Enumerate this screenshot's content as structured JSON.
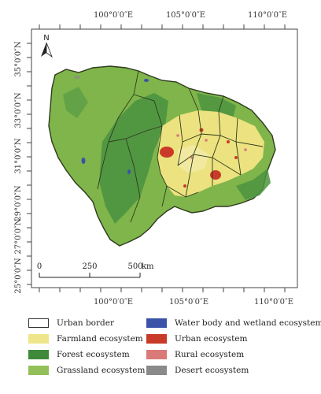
{
  "map": {
    "north_label": "N",
    "longitude_labels": [
      "100°0′0″E",
      "105°0′0″E",
      "110°0′0″E"
    ],
    "latitude_labels": [
      "35°0′0″N",
      "33°0′0″N",
      "31°0′0″N",
      "29°0′0″N",
      "27°0′0″N",
      "25°0′0″N"
    ],
    "scale_bar": {
      "ticks": [
        "0",
        "250",
        "500"
      ],
      "unit": "km"
    }
  },
  "legend": {
    "items": [
      {
        "label": "Urban border",
        "color": "#ffffff",
        "icon": "outline-box"
      },
      {
        "label": "Water body and wetland ecosystem",
        "color": "#3a52a8",
        "icon": "color-swatch"
      },
      {
        "label": "Farmland ecosystem",
        "color": "#efe58a",
        "icon": "color-swatch"
      },
      {
        "label": "Urban ecosystem",
        "color": "#c93a28",
        "icon": "color-swatch"
      },
      {
        "label": "Forest ecosystem",
        "color": "#3f8a3a",
        "icon": "color-swatch"
      },
      {
        "label": "Rural ecosystem",
        "color": "#d97a78",
        "icon": "color-swatch"
      },
      {
        "label": "Grassland ecosystem",
        "color": "#93c05a",
        "icon": "color-swatch"
      },
      {
        "label": "Desert ecosystem",
        "color": "#8a8a8a",
        "icon": "color-swatch"
      }
    ]
  }
}
